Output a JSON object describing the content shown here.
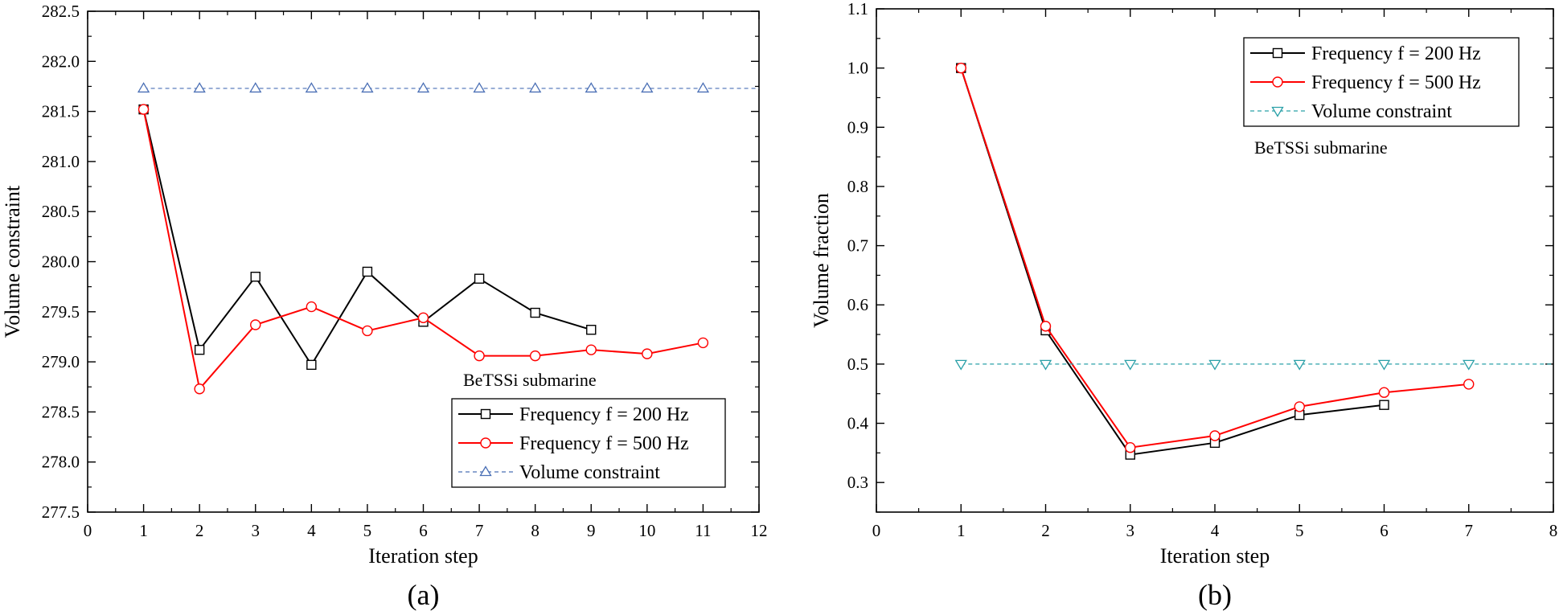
{
  "chart_data": [
    {
      "type": "line",
      "panel_label": "(a)",
      "title": "",
      "xlabel": "Iteration step",
      "ylabel": "Volume constraint",
      "xlim": [
        0,
        12
      ],
      "ylim": [
        277.5,
        282.5
      ],
      "x_ticks": [
        "0",
        "1",
        "2",
        "3",
        "4",
        "5",
        "6",
        "7",
        "8",
        "9",
        "10",
        "11",
        "12"
      ],
      "y_ticks": [
        "277.5",
        "278.0",
        "278.5",
        "279.0",
        "279.5",
        "280.0",
        "280.5",
        "281.0",
        "281.5",
        "282.0",
        "282.5"
      ],
      "annotation": "BeTSSi submarine",
      "legend_position": "bottom-right",
      "series": [
        {
          "name": "Frequency f = 200 Hz",
          "color": "#000000",
          "marker": "square",
          "dashed": false,
          "x": [
            1,
            2,
            3,
            4,
            5,
            6,
            7,
            8,
            9
          ],
          "y": [
            281.52,
            279.12,
            279.85,
            278.97,
            279.9,
            279.4,
            279.83,
            279.49,
            279.32
          ]
        },
        {
          "name": "Frequency f = 500 Hz",
          "color": "#ff0000",
          "marker": "circle",
          "dashed": false,
          "x": [
            1,
            2,
            3,
            4,
            5,
            6,
            7,
            8,
            9,
            10,
            11
          ],
          "y": [
            281.52,
            278.73,
            279.37,
            279.55,
            279.31,
            279.44,
            279.06,
            279.06,
            279.12,
            279.08,
            279.19
          ]
        },
        {
          "name": "Volume constraint",
          "color": "#4a6fb5",
          "marker": "triangle-up",
          "dashed": true,
          "x": [
            1,
            2,
            3,
            4,
            5,
            6,
            7,
            8,
            9,
            10,
            11
          ],
          "y": [
            281.73,
            281.73,
            281.73,
            281.73,
            281.73,
            281.73,
            281.73,
            281.73,
            281.73,
            281.73,
            281.73
          ],
          "line_x": [
            1,
            12
          ]
        }
      ]
    },
    {
      "type": "line",
      "panel_label": "(b)",
      "title": "",
      "xlabel": "Iteration step",
      "ylabel": "Volume fraction",
      "xlim": [
        0,
        8
      ],
      "ylim": [
        0.25,
        1.1
      ],
      "x_ticks": [
        "0",
        "1",
        "2",
        "3",
        "4",
        "5",
        "6",
        "7",
        "8"
      ],
      "y_ticks": [
        "0.3",
        "0.4",
        "0.5",
        "0.6",
        "0.7",
        "0.8",
        "0.9",
        "1.0",
        "1.1"
      ],
      "annotation": "BeTSSi submarine",
      "legend_position": "top-right",
      "series": [
        {
          "name": "Frequency f = 200 Hz",
          "color": "#000000",
          "marker": "square",
          "dashed": false,
          "x": [
            1,
            2,
            3,
            4,
            5,
            6
          ],
          "y": [
            1.0,
            0.557,
            0.347,
            0.367,
            0.414,
            0.431
          ]
        },
        {
          "name": "Frequency f = 500 Hz",
          "color": "#ff0000",
          "marker": "circle",
          "dashed": false,
          "x": [
            1,
            2,
            3,
            4,
            5,
            6,
            7
          ],
          "y": [
            1.0,
            0.564,
            0.359,
            0.379,
            0.428,
            0.452,
            0.466
          ]
        },
        {
          "name": "Volume constraint",
          "color": "#2aa0a8",
          "marker": "triangle-down",
          "dashed": true,
          "x": [
            1,
            2,
            3,
            4,
            5,
            6,
            7
          ],
          "y": [
            0.5,
            0.5,
            0.5,
            0.5,
            0.5,
            0.5,
            0.5
          ],
          "line_x": [
            1,
            8
          ]
        }
      ]
    }
  ]
}
